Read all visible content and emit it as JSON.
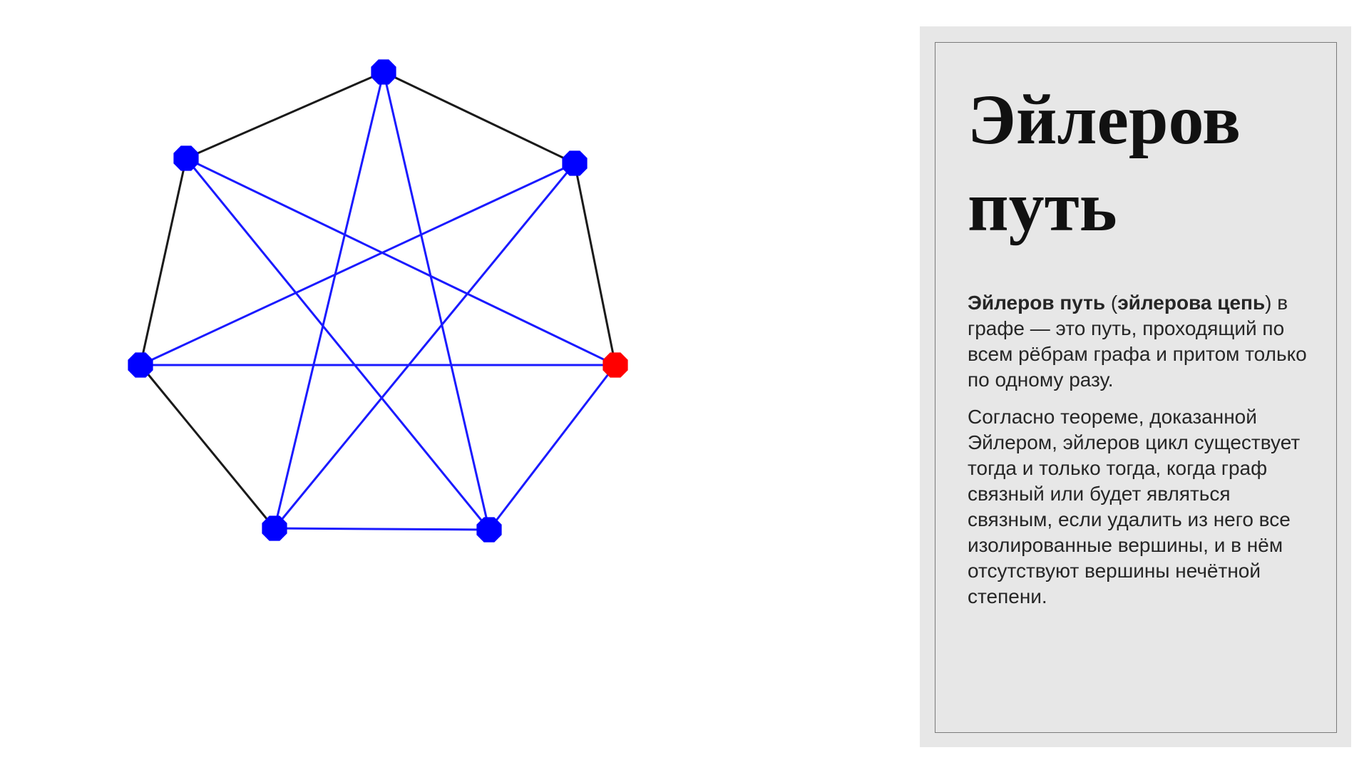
{
  "graph": {
    "vertex_colors": {
      "default": "#0000ff",
      "highlight": "#ff0000"
    },
    "edge_colors": {
      "outer": "#1a1a1a",
      "inner": "#1a1aff"
    }
  },
  "panel": {
    "title_line1": "Эйлеров",
    "title_line2": "путь",
    "paragraph1": {
      "term1": "Эйлеров путь",
      "open_paren": " (",
      "term2": "эйлерова цепь",
      "rest": ") в графе — это путь, проходящий по всем рёбрам графа и притом только по одному разу."
    },
    "paragraph2": "Согласно теореме, доказанной Эйлером, эйлеров цикл существует тогда и только тогда, когда граф связный или будет являться связным, если удалить из него все изолированные вершины, и в нём отсутствуют вершины нечётной степени."
  }
}
